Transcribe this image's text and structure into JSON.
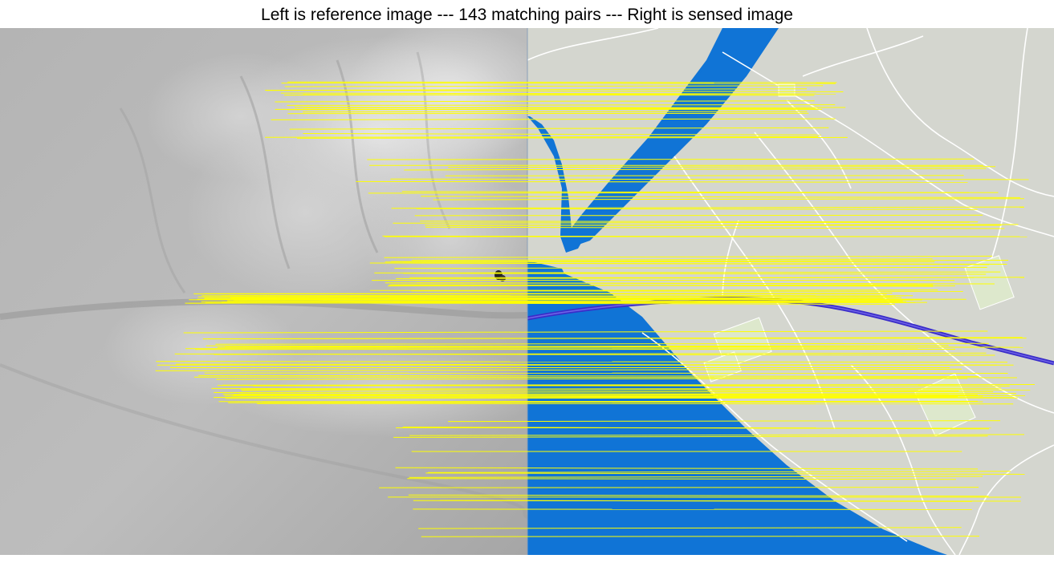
{
  "figure": {
    "title": "Left is reference image --- 143 matching pairs --- Right is sensed image",
    "match_count": 143
  },
  "colors": {
    "match_line": "#ffff00",
    "water": "#1074d6",
    "map_land": "#d4d6cf",
    "road": "#ffffff",
    "road_outline": "#b8b8b0",
    "built_area": "#dde8cc",
    "pipeline": "#3a2dc9",
    "dem_gray": "#a8a8a8"
  }
}
